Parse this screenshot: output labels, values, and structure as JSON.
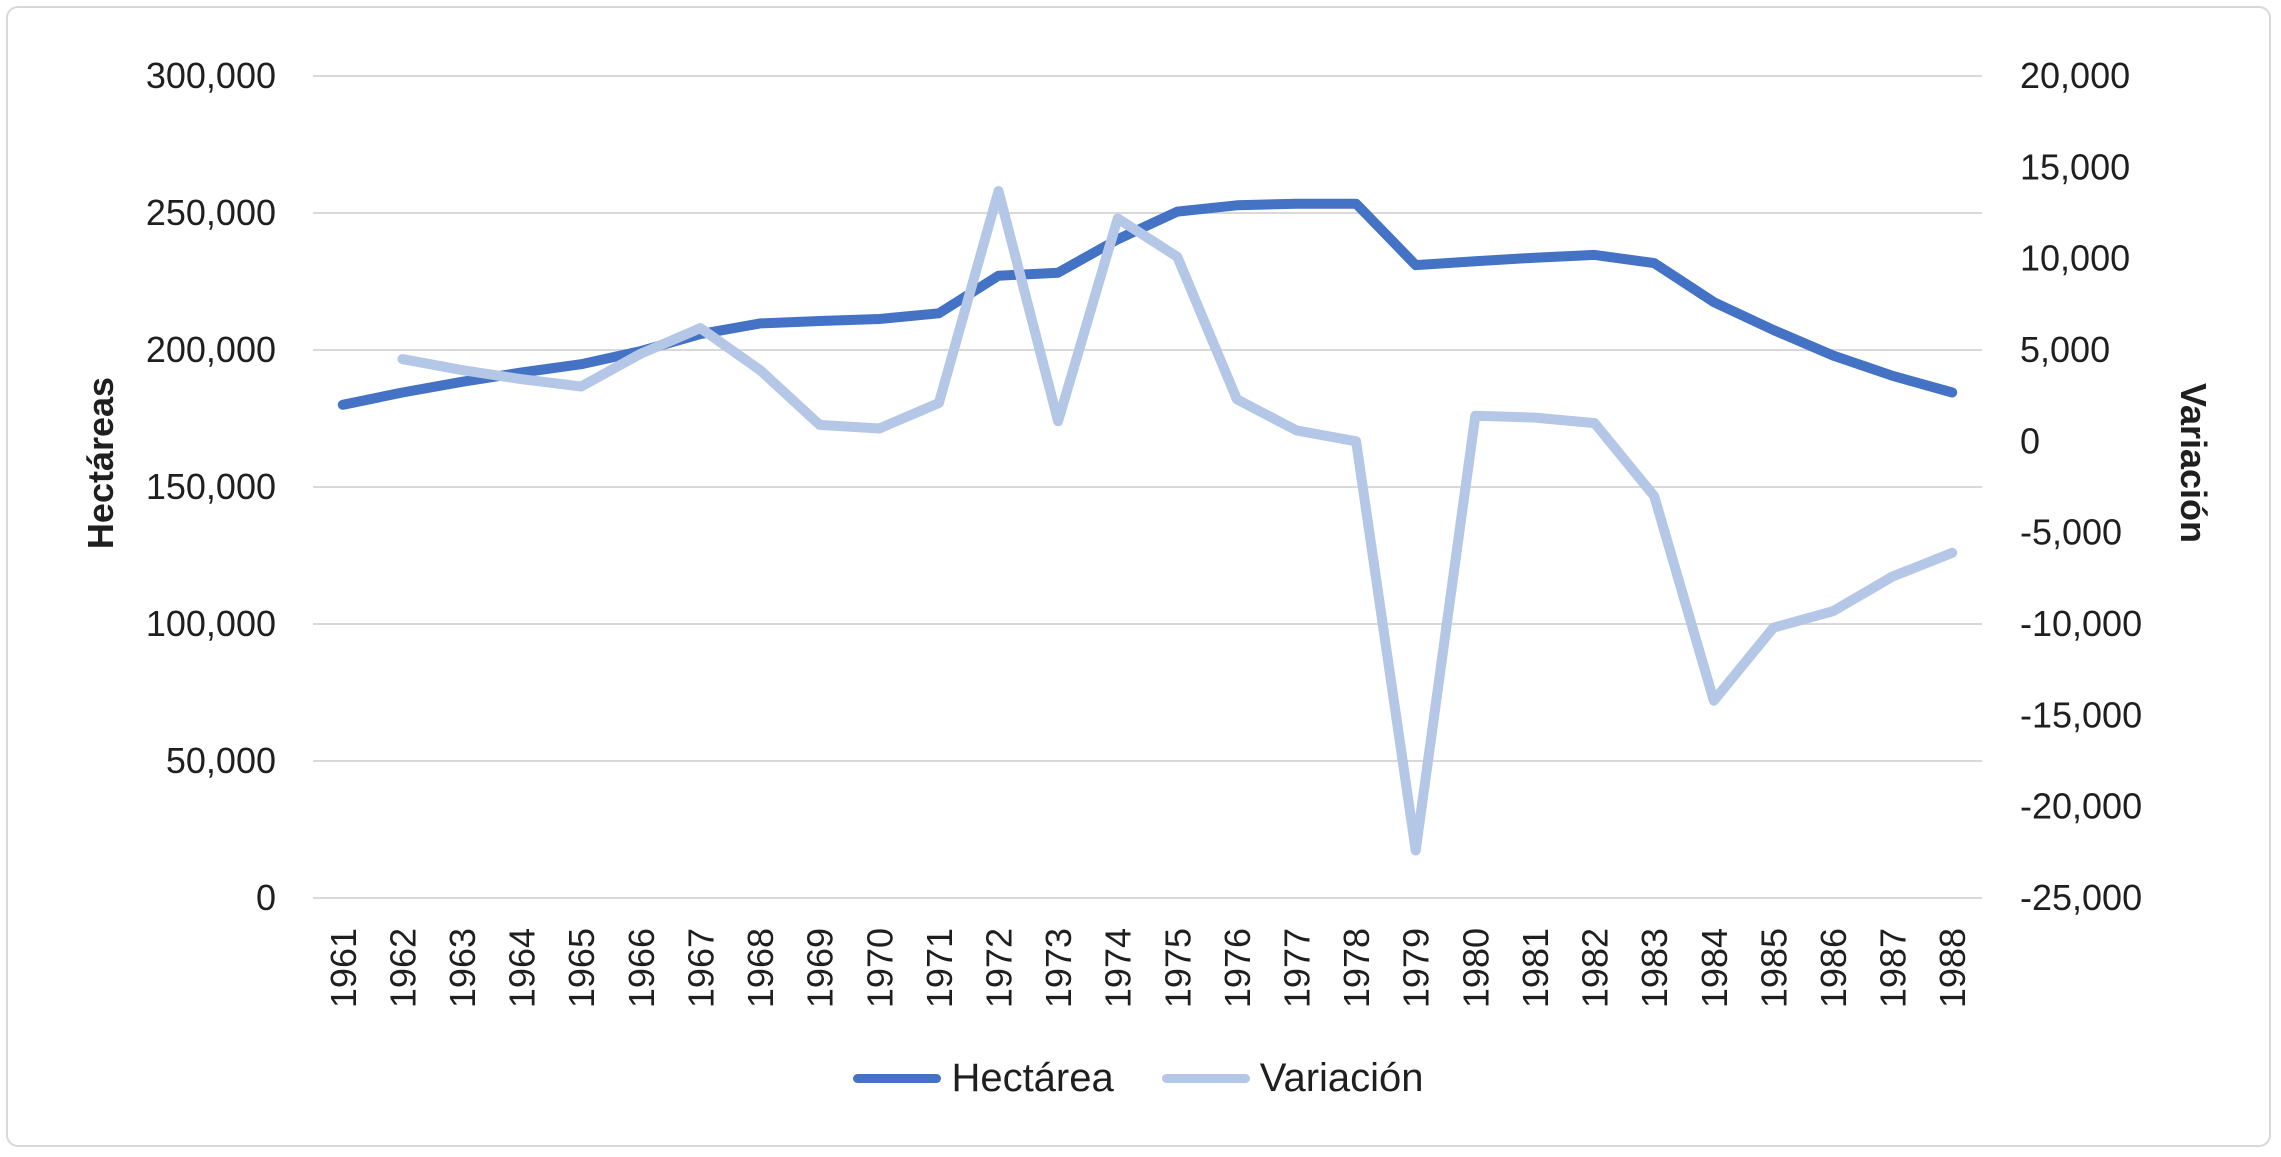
{
  "chart_data": {
    "type": "line",
    "title": "",
    "categories": [
      1961,
      1962,
      1963,
      1964,
      1965,
      1966,
      1967,
      1968,
      1969,
      1970,
      1971,
      1972,
      1973,
      1974,
      1975,
      1976,
      1977,
      1978,
      1979,
      1980,
      1981,
      1982,
      1983,
      1984,
      1985,
      1986,
      1987,
      1988
    ],
    "series": [
      {
        "name": "Hectárea",
        "axis": "left",
        "color": "#4472C4",
        "values": [
          180000,
          184500,
          188400,
          191800,
          194800,
          199600,
          205800,
          209700,
          210600,
          211300,
          213400,
          227100,
          228200,
          240400,
          250500,
          252800,
          253400,
          253400,
          231000,
          232400,
          233700,
          234700,
          231700,
          217500,
          207300,
          198000,
          190600,
          184500
        ]
      },
      {
        "name": "Variación",
        "axis": "right",
        "color": "#B4C7E7",
        "values": [
          null,
          4500,
          3900,
          3400,
          3000,
          4800,
          6200,
          3900,
          900,
          700,
          2100,
          13700,
          1100,
          12200,
          10100,
          2300,
          600,
          0,
          -22400,
          1400,
          1300,
          1000,
          -3000,
          -14200,
          -10200,
          -9300,
          -7400,
          -6100
        ]
      }
    ],
    "left_axis": {
      "label": "Hectáreas",
      "min": 0,
      "max": 300000,
      "ticks": [
        300000,
        250000,
        200000,
        150000,
        100000,
        50000,
        0
      ]
    },
    "right_axis": {
      "label": "Variación",
      "min": -25000,
      "max": 20000,
      "ticks": [
        20000,
        15000,
        10000,
        5000,
        0,
        -5000,
        -10000,
        -15000,
        -20000,
        -25000
      ]
    },
    "grid": true,
    "legend_position": "bottom",
    "gridline_color": "#d9d9d9",
    "text_color": "#1f1f1f"
  }
}
